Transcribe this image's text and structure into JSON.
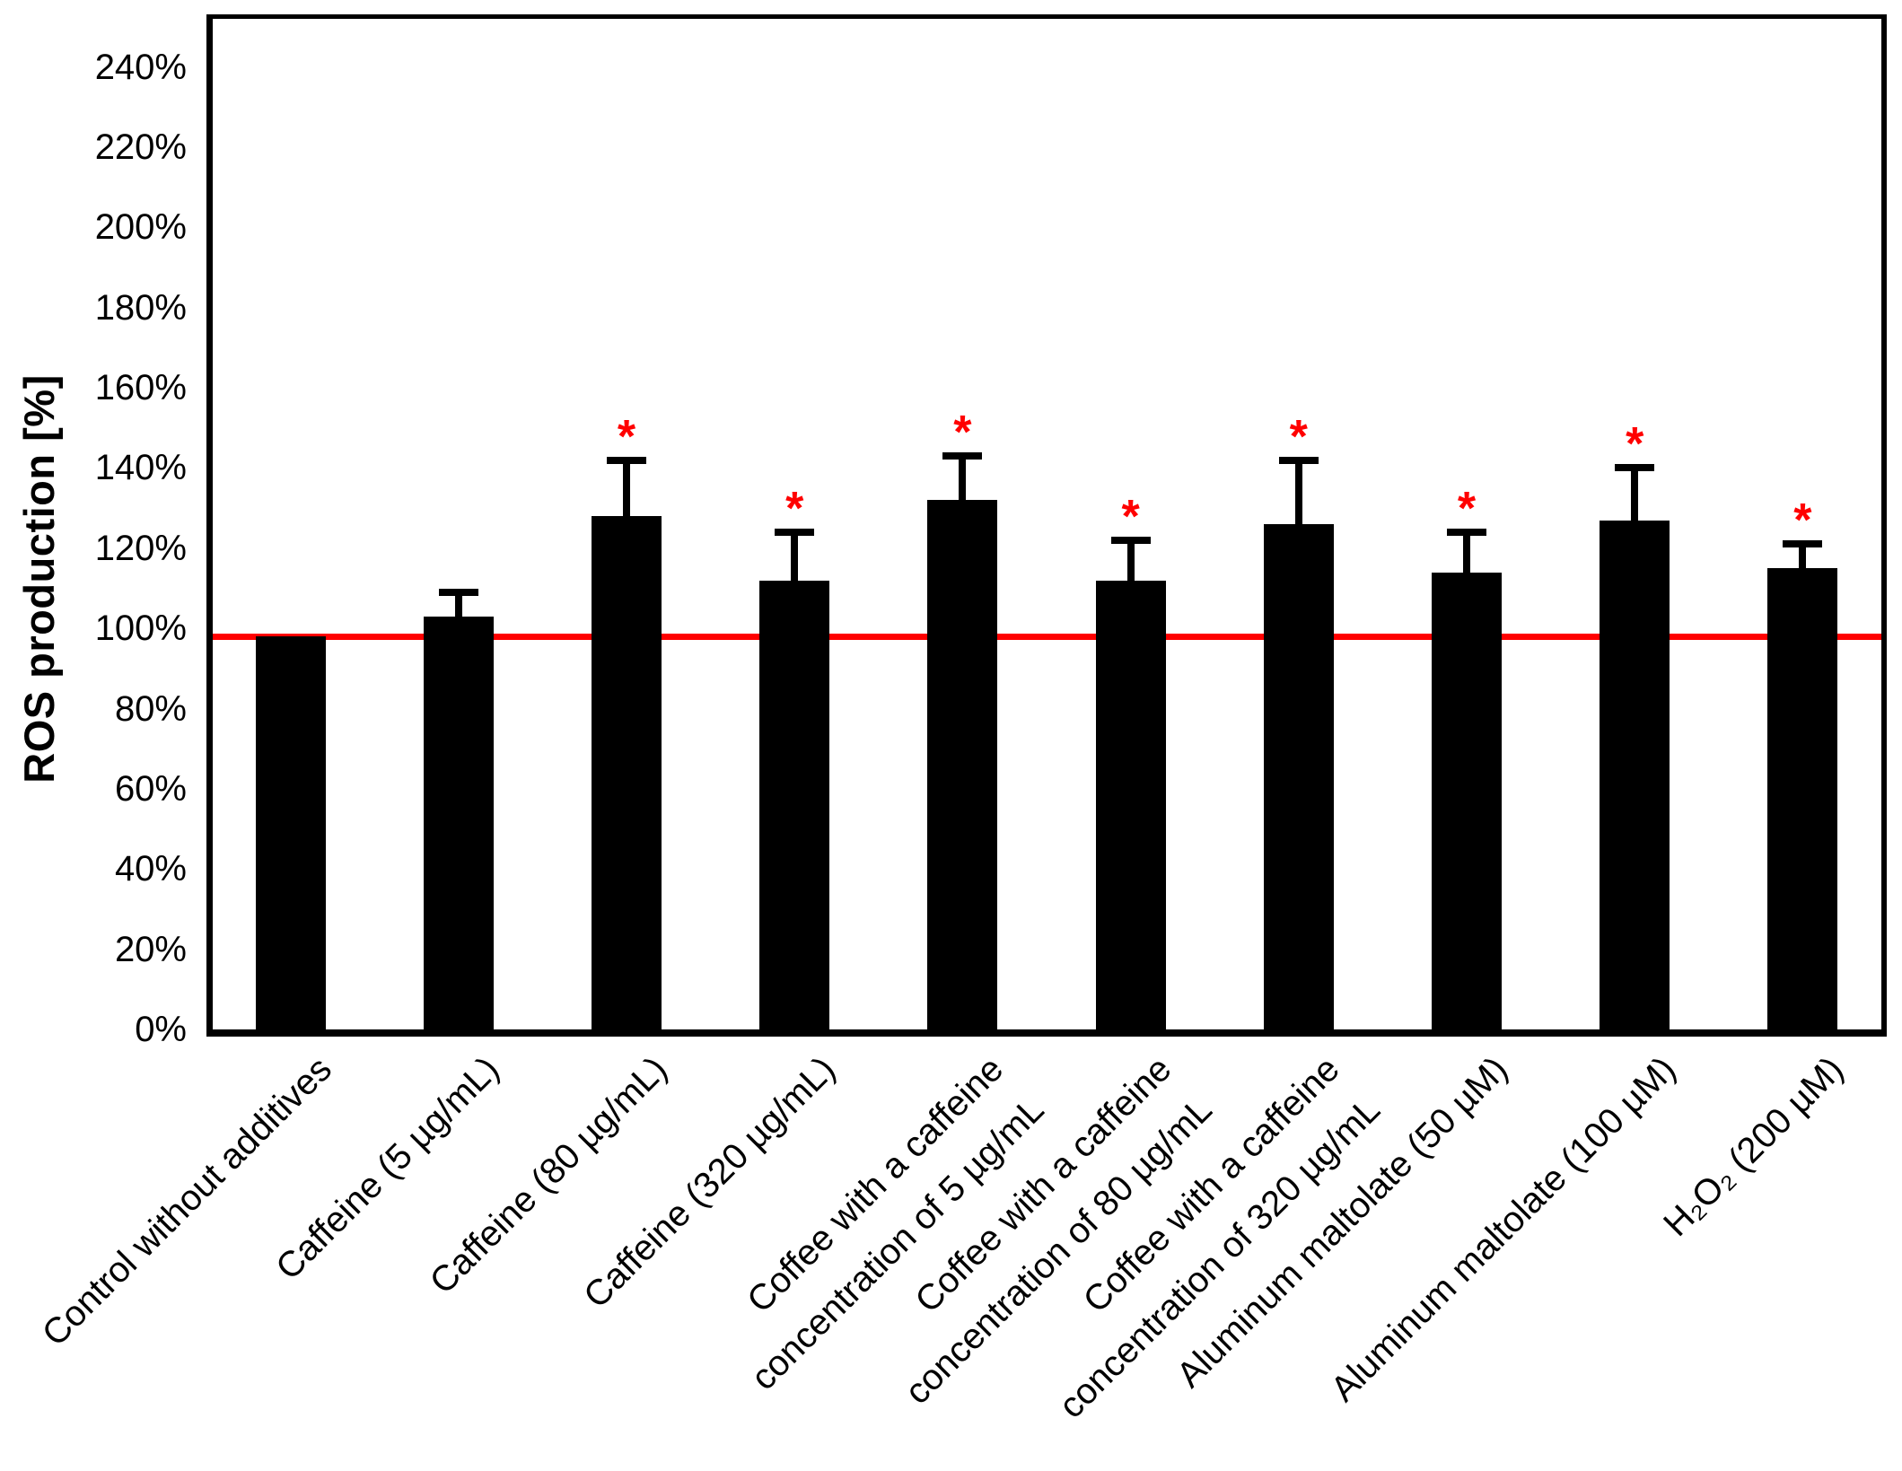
{
  "chart_data": {
    "type": "bar",
    "title": "",
    "ylabel": "ROS production [%]",
    "xlabel": "",
    "categories": [
      "Control without additives",
      "Caffeine (5 µg/mL)",
      "Caffeine (80 µg/mL)",
      "Caffeine (320 µg/mL)",
      "Coffee with a caffeine\nconcentration of 5 µg/mL",
      "Coffee with a caffeine\nconcentration of 80 µg/mL",
      "Coffee with a caffeine\nconcentration of 320 µg/mL",
      "Aluminum maltolate (50 µM)",
      "Aluminum maltolate (100 µM)",
      "H₂O₂ (200 µM)"
    ],
    "values": [
      98,
      103,
      128,
      112,
      132,
      112,
      126,
      114,
      127,
      115
    ],
    "error_bar_upper_tops": [
      null,
      109,
      142,
      124,
      143,
      122,
      142,
      124,
      140,
      121
    ],
    "significant": [
      false,
      false,
      true,
      true,
      true,
      true,
      true,
      true,
      true,
      true
    ],
    "significance_marker": "*",
    "significance_color": "#ff0000",
    "bar_color": "#000000",
    "axis_color": "#000000",
    "reference_line": {
      "value": 98,
      "color": "#ff0000"
    },
    "y_axis_tick_labels": [
      "0%",
      "20%",
      "40%",
      "60%",
      "80%",
      "100%",
      "120%",
      "140%",
      "160%",
      "180%",
      "200%",
      "220%",
      "240%"
    ],
    "y_tick_step": 20,
    "ylim": [
      0,
      252
    ],
    "grid": false,
    "legend": null
  }
}
